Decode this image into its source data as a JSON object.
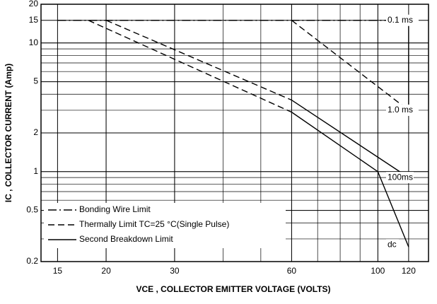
{
  "chart_data": {
    "type": "line",
    "x_label": "VCE , COLLECTOR EMITTER VOLTAGE (VOLTS)",
    "y_label": "IC , COLLECTOR CURRENT (Amp)",
    "xlog": true,
    "ylog": true,
    "grid": true,
    "xlim": [
      13.6,
      135
    ],
    "ylim": [
      0.2,
      20
    ],
    "xticks": [
      15,
      20,
      30,
      60,
      100,
      120
    ],
    "yticks": [
      0.2,
      0.5,
      1,
      2,
      5,
      10,
      15,
      20
    ],
    "legend": "lower left",
    "series": [
      {
        "name": "Bonding Wire Limit",
        "color": "#000",
        "style": "dashdot",
        "x": [
          15,
          120
        ],
        "values": [
          15,
          15
        ]
      },
      {
        "name": "Thermally Limit TC=25 °C(Single Pulse)",
        "color": "#000",
        "style": "dashed",
        "x": [
          60,
          120,
          null,
          20,
          60,
          null,
          18,
          60
        ],
        "values": [
          15,
          3,
          null,
          15,
          3.6,
          null,
          15,
          2.9
        ]
      },
      {
        "name": "Second Breakdown Limit",
        "color": "#000",
        "style": "solid",
        "x": [
          120,
          120,
          null,
          60,
          120,
          null,
          60,
          100,
          120
        ],
        "values": [
          15,
          3,
          null,
          3.6,
          0.9,
          null,
          2.9,
          1,
          0.26
        ]
      }
    ],
    "annotations": [
      {
        "text": "0.1 ms",
        "y": 15
      },
      {
        "text": "1.0 ms",
        "y": 3
      },
      {
        "text": "100ms",
        "y": 0.9
      },
      {
        "text": "dc",
        "y": 0.27
      }
    ]
  }
}
